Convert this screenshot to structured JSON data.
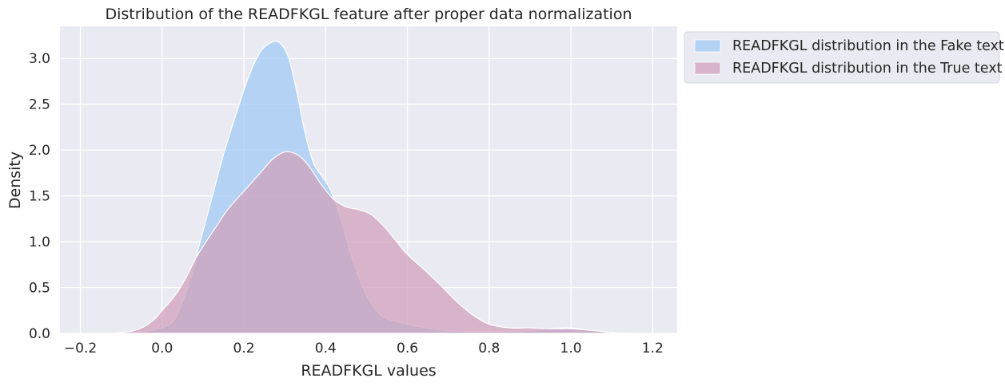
{
  "chart_data": {
    "type": "area",
    "title": "Distribution of the READFKGL feature after proper data normalization",
    "xlabel": "READFKGL values",
    "ylabel": "Density",
    "xlim": [
      -0.25,
      1.26
    ],
    "ylim": [
      0,
      3.35
    ],
    "xticks": [
      -0.2,
      0.0,
      0.2,
      0.4,
      0.6,
      0.8,
      1.0,
      1.2
    ],
    "yticks": [
      0.0,
      0.5,
      1.0,
      1.5,
      2.0,
      2.5,
      3.0
    ],
    "grid": true,
    "legend_position": "outside-upper-right",
    "series": [
      {
        "name": "READFKGL distribution in the Fake text",
        "color": "#a1c9f4",
        "x": [
          -0.07,
          0.0,
          0.03,
          0.05,
          0.07,
          0.09,
          0.12,
          0.15,
          0.18,
          0.21,
          0.24,
          0.27,
          0.29,
          0.31,
          0.33,
          0.35,
          0.37,
          0.39,
          0.41,
          0.43,
          0.45,
          0.47,
          0.5,
          0.53,
          0.55,
          0.58,
          0.62,
          0.66,
          0.7,
          0.75,
          0.8,
          0.85,
          0.9,
          0.95,
          0.98,
          1.0,
          1.02,
          1.05,
          1.08,
          1.12
        ],
        "y": [
          0.0,
          0.06,
          0.15,
          0.35,
          0.6,
          0.95,
          1.45,
          1.95,
          2.38,
          2.78,
          3.07,
          3.18,
          3.16,
          3.0,
          2.62,
          2.18,
          1.86,
          1.72,
          1.58,
          1.35,
          1.05,
          0.75,
          0.42,
          0.22,
          0.16,
          0.12,
          0.08,
          0.05,
          0.03,
          0.02,
          0.02,
          0.02,
          0.03,
          0.05,
          0.06,
          0.06,
          0.05,
          0.03,
          0.01,
          0.0
        ]
      },
      {
        "name": "READFKGL distribution in the True text",
        "color": "#d0a1bb",
        "x": [
          -0.12,
          -0.08,
          -0.05,
          -0.02,
          0.0,
          0.02,
          0.04,
          0.06,
          0.08,
          0.1,
          0.13,
          0.16,
          0.2,
          0.24,
          0.27,
          0.3,
          0.32,
          0.34,
          0.36,
          0.39,
          0.42,
          0.45,
          0.48,
          0.51,
          0.54,
          0.57,
          0.6,
          0.64,
          0.68,
          0.72,
          0.76,
          0.8,
          0.85,
          0.9,
          0.95,
          1.0,
          1.03,
          1.06,
          1.1,
          1.15
        ],
        "y": [
          0.0,
          0.02,
          0.06,
          0.15,
          0.25,
          0.35,
          0.47,
          0.62,
          0.8,
          0.95,
          1.15,
          1.35,
          1.55,
          1.75,
          1.9,
          1.98,
          1.97,
          1.92,
          1.82,
          1.62,
          1.46,
          1.38,
          1.35,
          1.3,
          1.18,
          1.02,
          0.86,
          0.7,
          0.53,
          0.35,
          0.2,
          0.1,
          0.06,
          0.06,
          0.05,
          0.05,
          0.04,
          0.03,
          0.01,
          0.0
        ]
      }
    ]
  }
}
